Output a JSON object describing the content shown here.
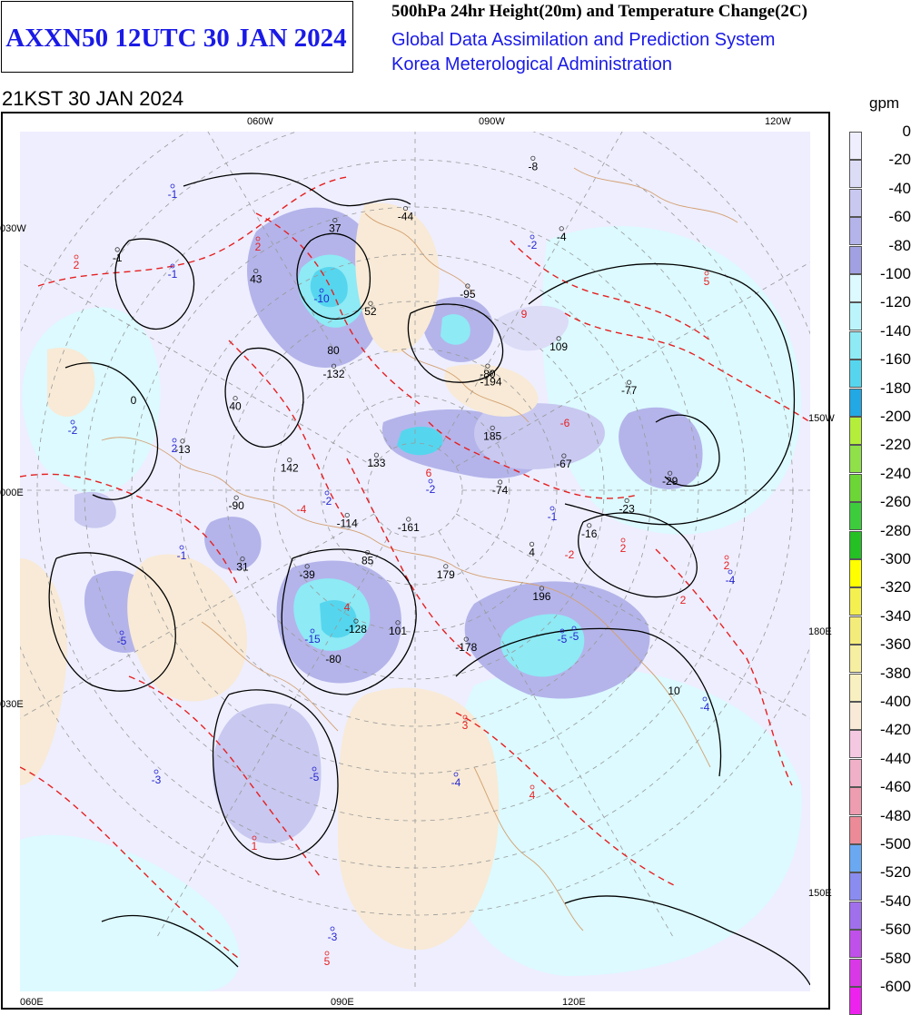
{
  "header": {
    "chart_code": "AXXN50 12UTC 30 JAN 2024",
    "product_title": "500hPa 24hr Height(20m) and Temperature Change(2C)",
    "system": "Global Data Assimilation and Prediction System",
    "agency": "Korea Meterological Administration",
    "valid_time": "21KST 30 JAN 2024"
  },
  "legend": {
    "unit": "gpm",
    "items": [
      {
        "label": "0",
        "color": "#eeeeff"
      },
      {
        "label": "-20",
        "color": "#dcdcf7"
      },
      {
        "label": "-40",
        "color": "#c8c8f0"
      },
      {
        "label": "-60",
        "color": "#b4b4ea"
      },
      {
        "label": "-80",
        "color": "#a0a0e2"
      },
      {
        "label": "-100",
        "color": "#dcfaff"
      },
      {
        "label": "-120",
        "color": "#bbf5fb"
      },
      {
        "label": "-140",
        "color": "#8eeaf5"
      },
      {
        "label": "-160",
        "color": "#55d6ee"
      },
      {
        "label": "-180",
        "color": "#22a8e4"
      },
      {
        "label": "-200",
        "color": "#b4ee3a"
      },
      {
        "label": "-220",
        "color": "#90e04a"
      },
      {
        "label": "-240",
        "color": "#6cd636"
      },
      {
        "label": "-260",
        "color": "#3ccc3c"
      },
      {
        "label": "-280",
        "color": "#24c024"
      },
      {
        "label": "-300",
        "color": "#ffff00"
      },
      {
        "label": "-320",
        "color": "#f4f050"
      },
      {
        "label": "-340",
        "color": "#f4ec7a"
      },
      {
        "label": "-360",
        "color": "#f6eea0"
      },
      {
        "label": "-380",
        "color": "#f8f0c0"
      },
      {
        "label": "-400",
        "color": "#f8ead6"
      },
      {
        "label": "-420",
        "color": "#f4c8e0"
      },
      {
        "label": "-440",
        "color": "#f0b0c8"
      },
      {
        "label": "-460",
        "color": "#ee9cb0"
      },
      {
        "label": "-480",
        "color": "#ec8a98"
      },
      {
        "label": "-500",
        "color": "#6aa8f2"
      },
      {
        "label": "-520",
        "color": "#8a8cf0"
      },
      {
        "label": "-540",
        "color": "#a070ec"
      },
      {
        "label": "-560",
        "color": "#c050ea"
      },
      {
        "label": "-580",
        "color": "#d838e6"
      },
      {
        "label": "-600",
        "color": "#ee22ee"
      }
    ]
  },
  "map": {
    "meridian_labels": [
      "060W",
      "090W",
      "120W",
      "030W",
      "150W",
      "000E",
      "180E",
      "030E",
      "150E",
      "060E",
      "090E",
      "120E"
    ],
    "height_change_labels": [
      {
        "value": "4",
        "lon": -28,
        "lat": 62
      },
      {
        "value": "-16",
        "lon": -14,
        "lat": 52
      },
      {
        "value": "-23",
        "lon": -5,
        "lat": 45
      },
      {
        "value": "-29",
        "lon": 2,
        "lat": 36
      },
      {
        "value": "196",
        "lon": -40,
        "lat": 55
      },
      {
        "value": "-178",
        "lon": -72,
        "lat": 55
      },
      {
        "value": "101",
        "lon": -97,
        "lat": 60
      },
      {
        "value": "-128",
        "lon": -113,
        "lat": 58
      },
      {
        "value": "-39",
        "lon": -142,
        "lat": 61
      },
      {
        "value": "31",
        "lon": -156,
        "lat": 50
      },
      {
        "value": "85",
        "lon": -124,
        "lat": 72
      },
      {
        "value": "179",
        "lon": -70,
        "lat": 71
      },
      {
        "value": "-161",
        "lon": -100,
        "lat": 82
      },
      {
        "value": "-114",
        "lon": -154,
        "lat": 74
      },
      {
        "value": "-90",
        "lon": -175,
        "lat": 52
      },
      {
        "value": "-74",
        "lon": 0,
        "lat": 72
      },
      {
        "value": "-67",
        "lon": 10,
        "lat": 58
      },
      {
        "value": "185",
        "lon": 35,
        "lat": 70
      },
      {
        "value": "133",
        "lon": 145,
        "lat": 80
      },
      {
        "value": "142",
        "lon": 170,
        "lat": 63
      },
      {
        "value": "-77",
        "lon": 25,
        "lat": 40
      },
      {
        "value": "109",
        "lon": 45,
        "lat": 47
      },
      {
        "value": "-194",
        "lon": 55,
        "lat": 62
      },
      {
        "value": "-80",
        "lon": 58,
        "lat": 61
      },
      {
        "value": "-132",
        "lon": 125,
        "lat": 60
      },
      {
        "value": "-95",
        "lon": 75,
        "lat": 47
      },
      {
        "value": "52",
        "lon": 104,
        "lat": 51
      },
      {
        "value": "40",
        "lon": 155,
        "lat": 48
      },
      {
        "value": "-13",
        "lon": 170,
        "lat": 40
      },
      {
        "value": "-44",
        "lon": 92,
        "lat": 32
      },
      {
        "value": "37",
        "lon": 107,
        "lat": 32
      },
      {
        "value": "43",
        "lon": 127,
        "lat": 34
      },
      {
        "value": "-4",
        "lon": 60,
        "lat": 28
      },
      {
        "value": "-8",
        "lon": 70,
        "lat": 17
      },
      {
        "value": "-1",
        "lon": 142,
        "lat": 10
      }
    ],
    "temperature_change_labels": [
      {
        "value": "-1",
        "color": "blue"
      },
      {
        "value": "2",
        "color": "red"
      },
      {
        "value": "-1",
        "color": "blue"
      },
      {
        "value": "2",
        "color": "red"
      },
      {
        "value": "-2",
        "color": "blue"
      },
      {
        "value": "5",
        "color": "red"
      },
      {
        "value": "-2",
        "color": "blue"
      },
      {
        "value": "2",
        "color": "blue"
      },
      {
        "value": "-10",
        "color": "blue"
      },
      {
        "value": "-1",
        "color": "blue"
      },
      {
        "value": "-2",
        "color": "blue"
      },
      {
        "value": "-5",
        "color": "blue"
      },
      {
        "value": "-2",
        "color": "blue"
      },
      {
        "value": "-4",
        "color": "blue"
      },
      {
        "value": "-4",
        "color": "blue"
      },
      {
        "value": "-5",
        "color": "blue"
      },
      {
        "value": "-15",
        "color": "blue"
      },
      {
        "value": "-5",
        "color": "blue"
      },
      {
        "value": "-5",
        "color": "blue"
      },
      {
        "value": "3",
        "color": "red"
      },
      {
        "value": "-3",
        "color": "blue"
      },
      {
        "value": "-4",
        "color": "blue"
      },
      {
        "value": "-1",
        "color": "blue"
      },
      {
        "value": "2",
        "color": "red"
      },
      {
        "value": "4",
        "color": "red"
      },
      {
        "value": "1",
        "color": "red"
      },
      {
        "value": "2",
        "color": "red"
      },
      {
        "value": "-3",
        "color": "blue"
      },
      {
        "value": "5",
        "color": "red"
      }
    ],
    "contour_labels": [
      "0",
      "80",
      "-80",
      "-4",
      "4",
      "2",
      "-2",
      "6",
      "9",
      "10",
      "-6"
    ]
  }
}
